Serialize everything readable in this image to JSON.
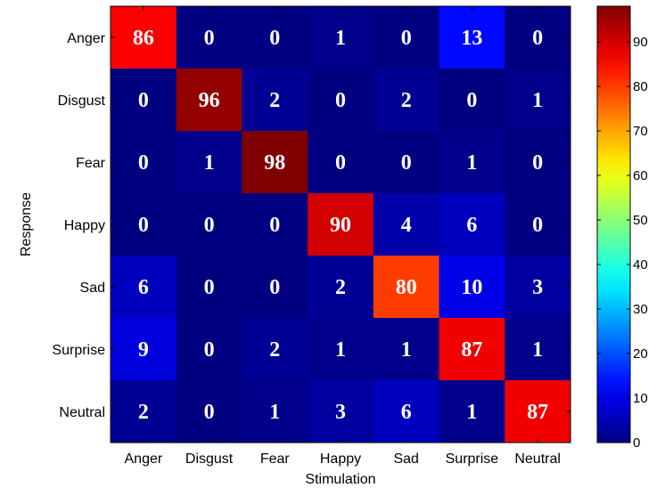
{
  "chart_data": {
    "type": "heatmap",
    "xlabel": "Stimulation",
    "ylabel": "Response",
    "x_categories": [
      "Anger",
      "Disgust",
      "Fear",
      "Happy",
      "Sad",
      "Surprise",
      "Neutral"
    ],
    "y_categories": [
      "Anger",
      "Disgust",
      "Fear",
      "Happy",
      "Sad",
      "Surprise",
      "Neutral"
    ],
    "values": [
      [
        86,
        0,
        0,
        1,
        0,
        13,
        0
      ],
      [
        0,
        96,
        2,
        0,
        2,
        0,
        1
      ],
      [
        0,
        1,
        98,
        0,
        0,
        1,
        0
      ],
      [
        0,
        0,
        0,
        90,
        4,
        6,
        0
      ],
      [
        6,
        0,
        0,
        2,
        80,
        10,
        3
      ],
      [
        9,
        0,
        2,
        1,
        1,
        87,
        1
      ],
      [
        2,
        0,
        1,
        3,
        6,
        1,
        87
      ]
    ],
    "colormap": "jet",
    "color_range": [
      0,
      98
    ],
    "colorbar_ticks": [
      0,
      10,
      20,
      30,
      40,
      50,
      60,
      70,
      80,
      90
    ],
    "colorbar_placement": "right",
    "grid": false
  }
}
